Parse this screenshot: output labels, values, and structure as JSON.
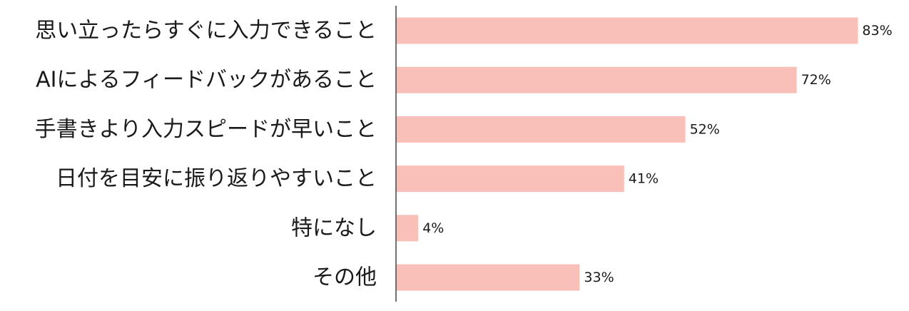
{
  "chart_data": {
    "type": "bar",
    "orientation": "horizontal",
    "categories": [
      "思い立ったらすぐに入力できること",
      "AIによるフィードバックがあること",
      "手書きより入力スピードが早いこと",
      "日付を目安に振り返りやすいこと",
      "特になし",
      "その他"
    ],
    "values": [
      83,
      72,
      52,
      41,
      4,
      33
    ],
    "value_labels": [
      "83%",
      "72%",
      "52%",
      "41%",
      "4%",
      "33%"
    ],
    "unit": "%",
    "xlim": [
      0,
      100
    ],
    "grid": false,
    "legend": "none",
    "colors": {
      "bar": "#f8c0b8",
      "axis": "#444444",
      "text": "#1a1a1a"
    }
  }
}
